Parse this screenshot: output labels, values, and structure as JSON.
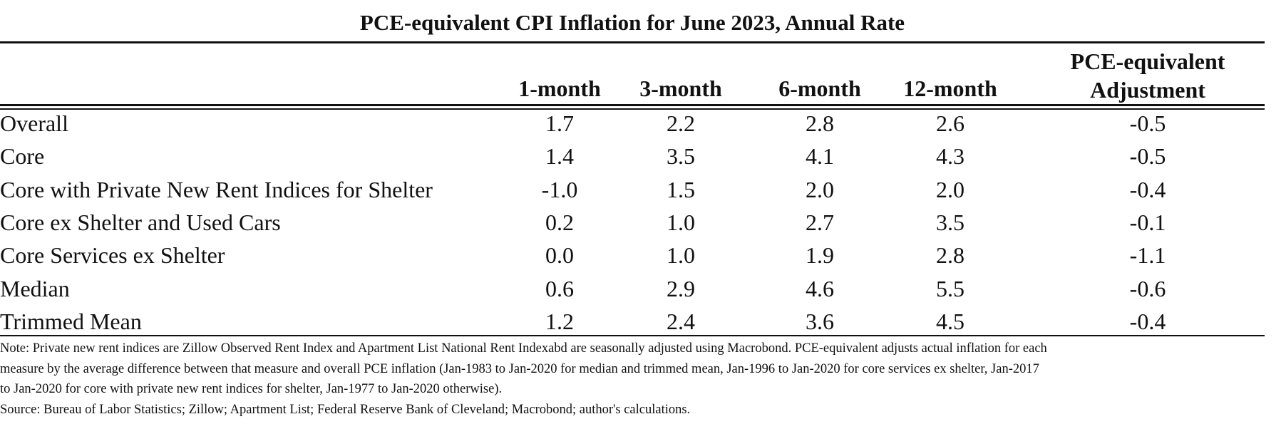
{
  "chart_data": {
    "type": "table",
    "title": "PCE-equivalent CPI Inflation for June 2023, Annual Rate",
    "columns": [
      "1-month",
      "3-month",
      "6-month",
      "12-month",
      "PCE-equivalent Adjustment"
    ],
    "rows": [
      {
        "label": "Overall",
        "values": [
          "1.7",
          "2.2",
          "2.8",
          "2.6",
          "-0.5"
        ]
      },
      {
        "label": "Core",
        "values": [
          "1.4",
          "3.5",
          "4.1",
          "4.3",
          "-0.5"
        ]
      },
      {
        "label": "Core with Private New Rent Indices for Shelter",
        "values": [
          "-1.0",
          "1.5",
          "2.0",
          "2.0",
          "-0.4"
        ]
      },
      {
        "label": "Core ex Shelter and Used Cars",
        "values": [
          "0.2",
          "1.0",
          "2.7",
          "3.5",
          "-0.1"
        ]
      },
      {
        "label": "Core Services ex Shelter",
        "values": [
          "0.0",
          "1.0",
          "1.9",
          "2.8",
          "-1.1"
        ]
      },
      {
        "label": "Median",
        "values": [
          "0.6",
          "2.9",
          "4.6",
          "5.5",
          "-0.6"
        ]
      },
      {
        "label": "Trimmed Mean",
        "values": [
          "1.2",
          "2.4",
          "3.6",
          "4.5",
          "-0.4"
        ]
      }
    ]
  },
  "notes": [
    "Note: Private new rent indices are Zillow Observed Rent Index and Apartment List National Rent Indexabd are seasonally adjusted using Macrobond. PCE-equivalent adjusts actual inflation for each",
    "measure by the average difference between that measure and overall PCE inflation (Jan-1983 to Jan-2020 for median and trimmed mean, Jan-1996 to Jan-2020 for core services ex shelter, Jan-2017",
    "to Jan-2020 for core with private new rent indices for shelter, Jan-1977 to Jan-2020 otherwise).",
    "Source: Bureau of Labor Statistics; Zillow; Apartment List; Federal Reserve Bank of Cleveland; Macrobond; author's calculations."
  ]
}
